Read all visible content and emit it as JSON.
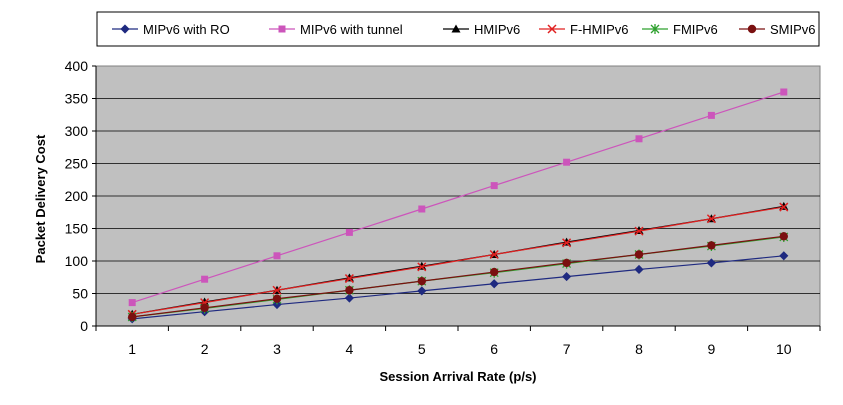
{
  "chart_data": {
    "type": "line",
    "title": "",
    "xlabel": "Session Arrival Rate (p/s)",
    "ylabel": "Packet Delivery Cost",
    "x": [
      1,
      2,
      3,
      4,
      5,
      6,
      7,
      8,
      9,
      10
    ],
    "ylim": [
      0,
      400
    ],
    "yticks": [
      0,
      50,
      100,
      150,
      200,
      250,
      300,
      350,
      400
    ],
    "grid": true,
    "legend_position": "top",
    "series": [
      {
        "name": "MIPv6 with RO",
        "color": "#1f2a80",
        "marker": "diamond",
        "values": [
          11,
          22,
          33,
          43,
          54,
          65,
          76,
          87,
          97,
          108
        ]
      },
      {
        "name": "MIPv6 with tunnel",
        "color": "#cc55bb",
        "marker": "square",
        "values": [
          36,
          72,
          108,
          144,
          180,
          216,
          252,
          288,
          324,
          360
        ]
      },
      {
        "name": "HMIPv6",
        "color": "#000000",
        "marker": "triangle",
        "values": [
          18,
          37,
          55,
          74,
          92,
          110,
          129,
          147,
          165,
          184
        ]
      },
      {
        "name": "F-HMIPv6",
        "color": "#e02020",
        "marker": "x",
        "values": [
          18,
          36,
          55,
          73,
          91,
          110,
          128,
          146,
          165,
          183
        ]
      },
      {
        "name": "FMIPv6",
        "color": "#2ea02e",
        "marker": "star",
        "values": [
          14,
          27,
          41,
          55,
          69,
          82,
          96,
          110,
          123,
          137
        ]
      },
      {
        "name": "SMIPv6",
        "color": "#7a1010",
        "marker": "circle",
        "values": [
          14,
          28,
          42,
          55,
          69,
          83,
          97,
          110,
          124,
          138
        ]
      }
    ]
  }
}
